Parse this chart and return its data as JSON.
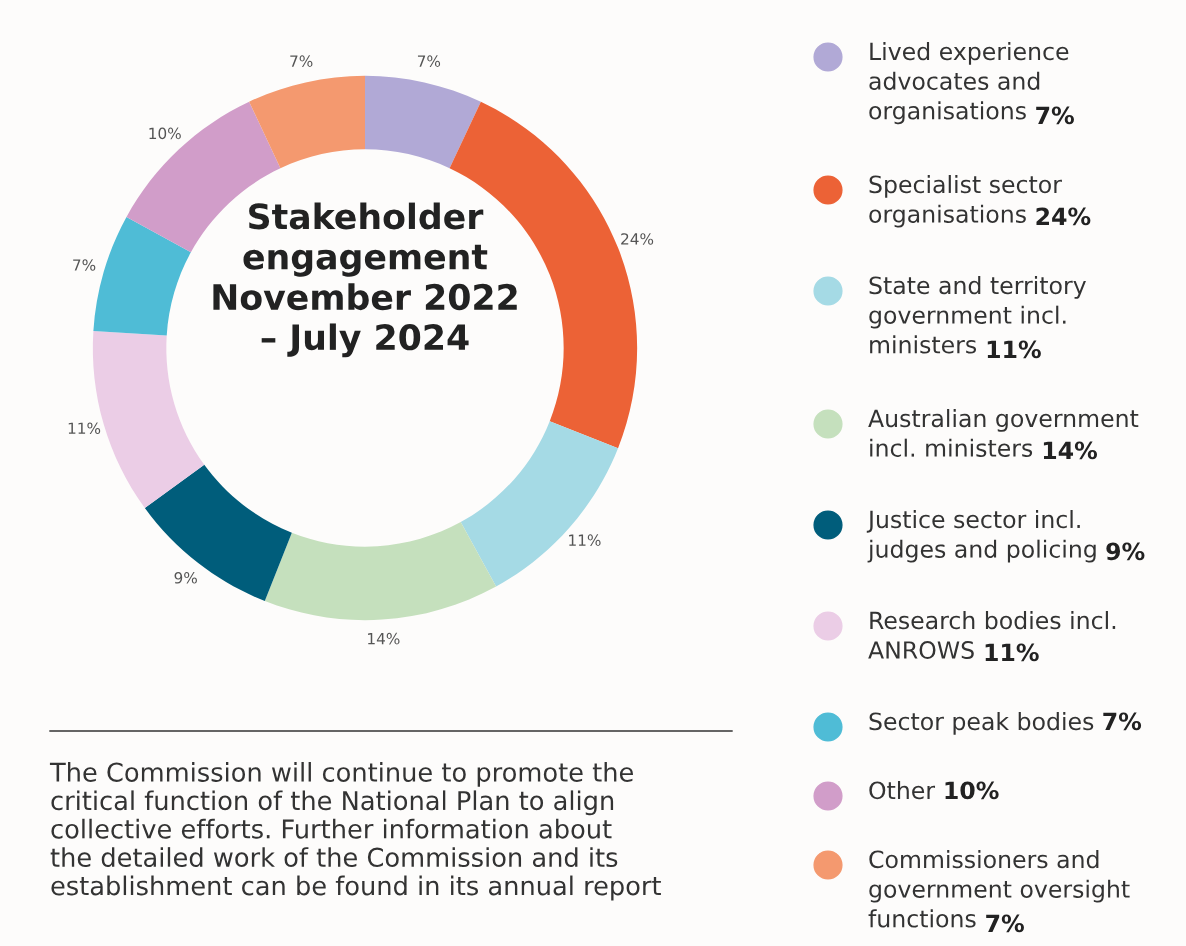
{
  "chart_data": {
    "type": "donut",
    "title": "Stakeholder\nengagement\nNovember 2022\n– July 2024",
    "categories": [
      "Lived experience\nadvocates and\norganisations",
      "Specialist sector\norganisations",
      "State and territory\ngovernment incl.\nministers",
      "Australian government\nincl. ministers",
      "Justice sector incl.\njudges and policing",
      "Research bodies incl.\nANROWS",
      "Sector peak bodies",
      "Other",
      "Commissioners and\ngovernment oversight\nfunctions"
    ],
    "values": [
      7,
      24,
      11,
      14,
      9,
      11,
      7,
      10,
      7
    ],
    "value_labels": [
      "7%",
      "24%",
      "11%",
      "14%",
      "9%",
      "11%",
      "7%",
      "10%",
      "7%"
    ],
    "colors": [
      "#b1a9d6",
      "#ec6236",
      "#a5dae5",
      "#c5e0bd",
      "#005d7b",
      "#ebcde6",
      "#4fbcd6",
      "#d19dc9",
      "#f4996f"
    ],
    "legend": "right",
    "annotations": [
      "The Commission will continue to promote the\ncritical function of the National Plan to align\ncollective efforts. Further information about\nthe detailed work of the Commission and its\nestablishment can be found in its annual report"
    ]
  }
}
